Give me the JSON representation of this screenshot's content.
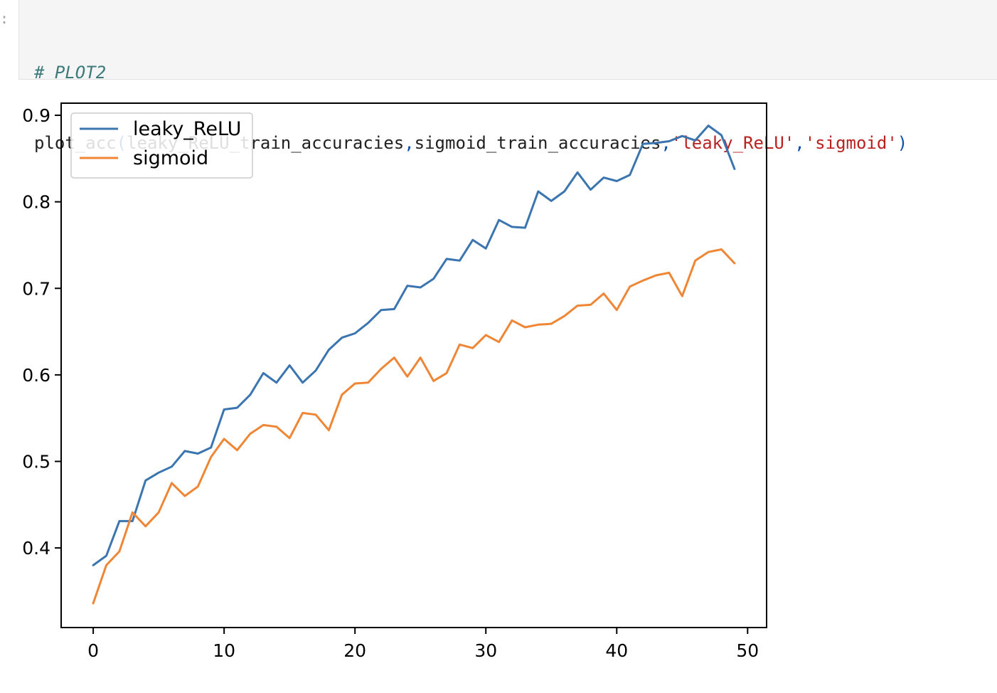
{
  "code_cell": {
    "comment": "# PLOT2",
    "call": {
      "func": "plot_acc",
      "open_paren": "(",
      "arg1": "leaky_ReLU_train_accuracies",
      "comma1": ",",
      "arg2": "sigmoid_train_accuracies",
      "comma2": ",",
      "arg3": "'leaky_ReLU'",
      "comma3": ",",
      "arg4": "'sigmoid'",
      "close_paren": ")"
    }
  },
  "colors": {
    "series_blue": "#3b75af",
    "series_orange": "#ef8636"
  },
  "chart_data": {
    "type": "line",
    "title": "",
    "xlabel": "",
    "ylabel": "",
    "xlim": [
      -2.45,
      51.45
    ],
    "ylim": [
      0.308,
      0.914
    ],
    "xticks": [
      0,
      10,
      20,
      30,
      40,
      50
    ],
    "yticks": [
      0.4,
      0.5,
      0.6,
      0.7,
      0.8,
      0.9
    ],
    "xtick_labels": [
      "0",
      "10",
      "20",
      "30",
      "40",
      "50"
    ],
    "ytick_labels": [
      "0.4",
      "0.5",
      "0.6",
      "0.7",
      "0.8",
      "0.9"
    ],
    "legend": "top-left",
    "grid": false,
    "x": [
      0,
      1,
      2,
      3,
      4,
      5,
      6,
      7,
      8,
      9,
      10,
      11,
      12,
      13,
      14,
      15,
      16,
      17,
      18,
      19,
      20,
      21,
      22,
      23,
      24,
      25,
      26,
      27,
      28,
      29,
      30,
      31,
      32,
      33,
      34,
      35,
      36,
      37,
      38,
      39,
      40,
      41,
      42,
      43,
      44,
      45,
      46,
      47,
      48,
      49
    ],
    "series": [
      {
        "name": "leaky_ReLU",
        "color": "#3b75af",
        "values": [
          0.38,
          0.391,
          0.431,
          0.431,
          0.478,
          0.487,
          0.494,
          0.512,
          0.509,
          0.516,
          0.56,
          0.562,
          0.577,
          0.602,
          0.591,
          0.611,
          0.591,
          0.605,
          0.629,
          0.643,
          0.648,
          0.66,
          0.675,
          0.676,
          0.703,
          0.701,
          0.711,
          0.734,
          0.732,
          0.756,
          0.746,
          0.779,
          0.771,
          0.77,
          0.812,
          0.801,
          0.812,
          0.834,
          0.814,
          0.828,
          0.824,
          0.831,
          0.867,
          0.868,
          0.87,
          0.876,
          0.871,
          0.888,
          0.877,
          0.838
        ]
      },
      {
        "name": "sigmoid",
        "color": "#ef8636",
        "values": [
          0.336,
          0.38,
          0.396,
          0.441,
          0.425,
          0.441,
          0.475,
          0.46,
          0.471,
          0.505,
          0.526,
          0.513,
          0.532,
          0.542,
          0.54,
          0.527,
          0.556,
          0.554,
          0.536,
          0.577,
          0.59,
          0.591,
          0.607,
          0.62,
          0.598,
          0.62,
          0.593,
          0.602,
          0.635,
          0.631,
          0.646,
          0.638,
          0.663,
          0.655,
          0.658,
          0.659,
          0.668,
          0.68,
          0.681,
          0.694,
          0.675,
          0.702,
          0.709,
          0.715,
          0.718,
          0.691,
          0.732,
          0.742,
          0.745,
          0.729
        ]
      }
    ]
  }
}
